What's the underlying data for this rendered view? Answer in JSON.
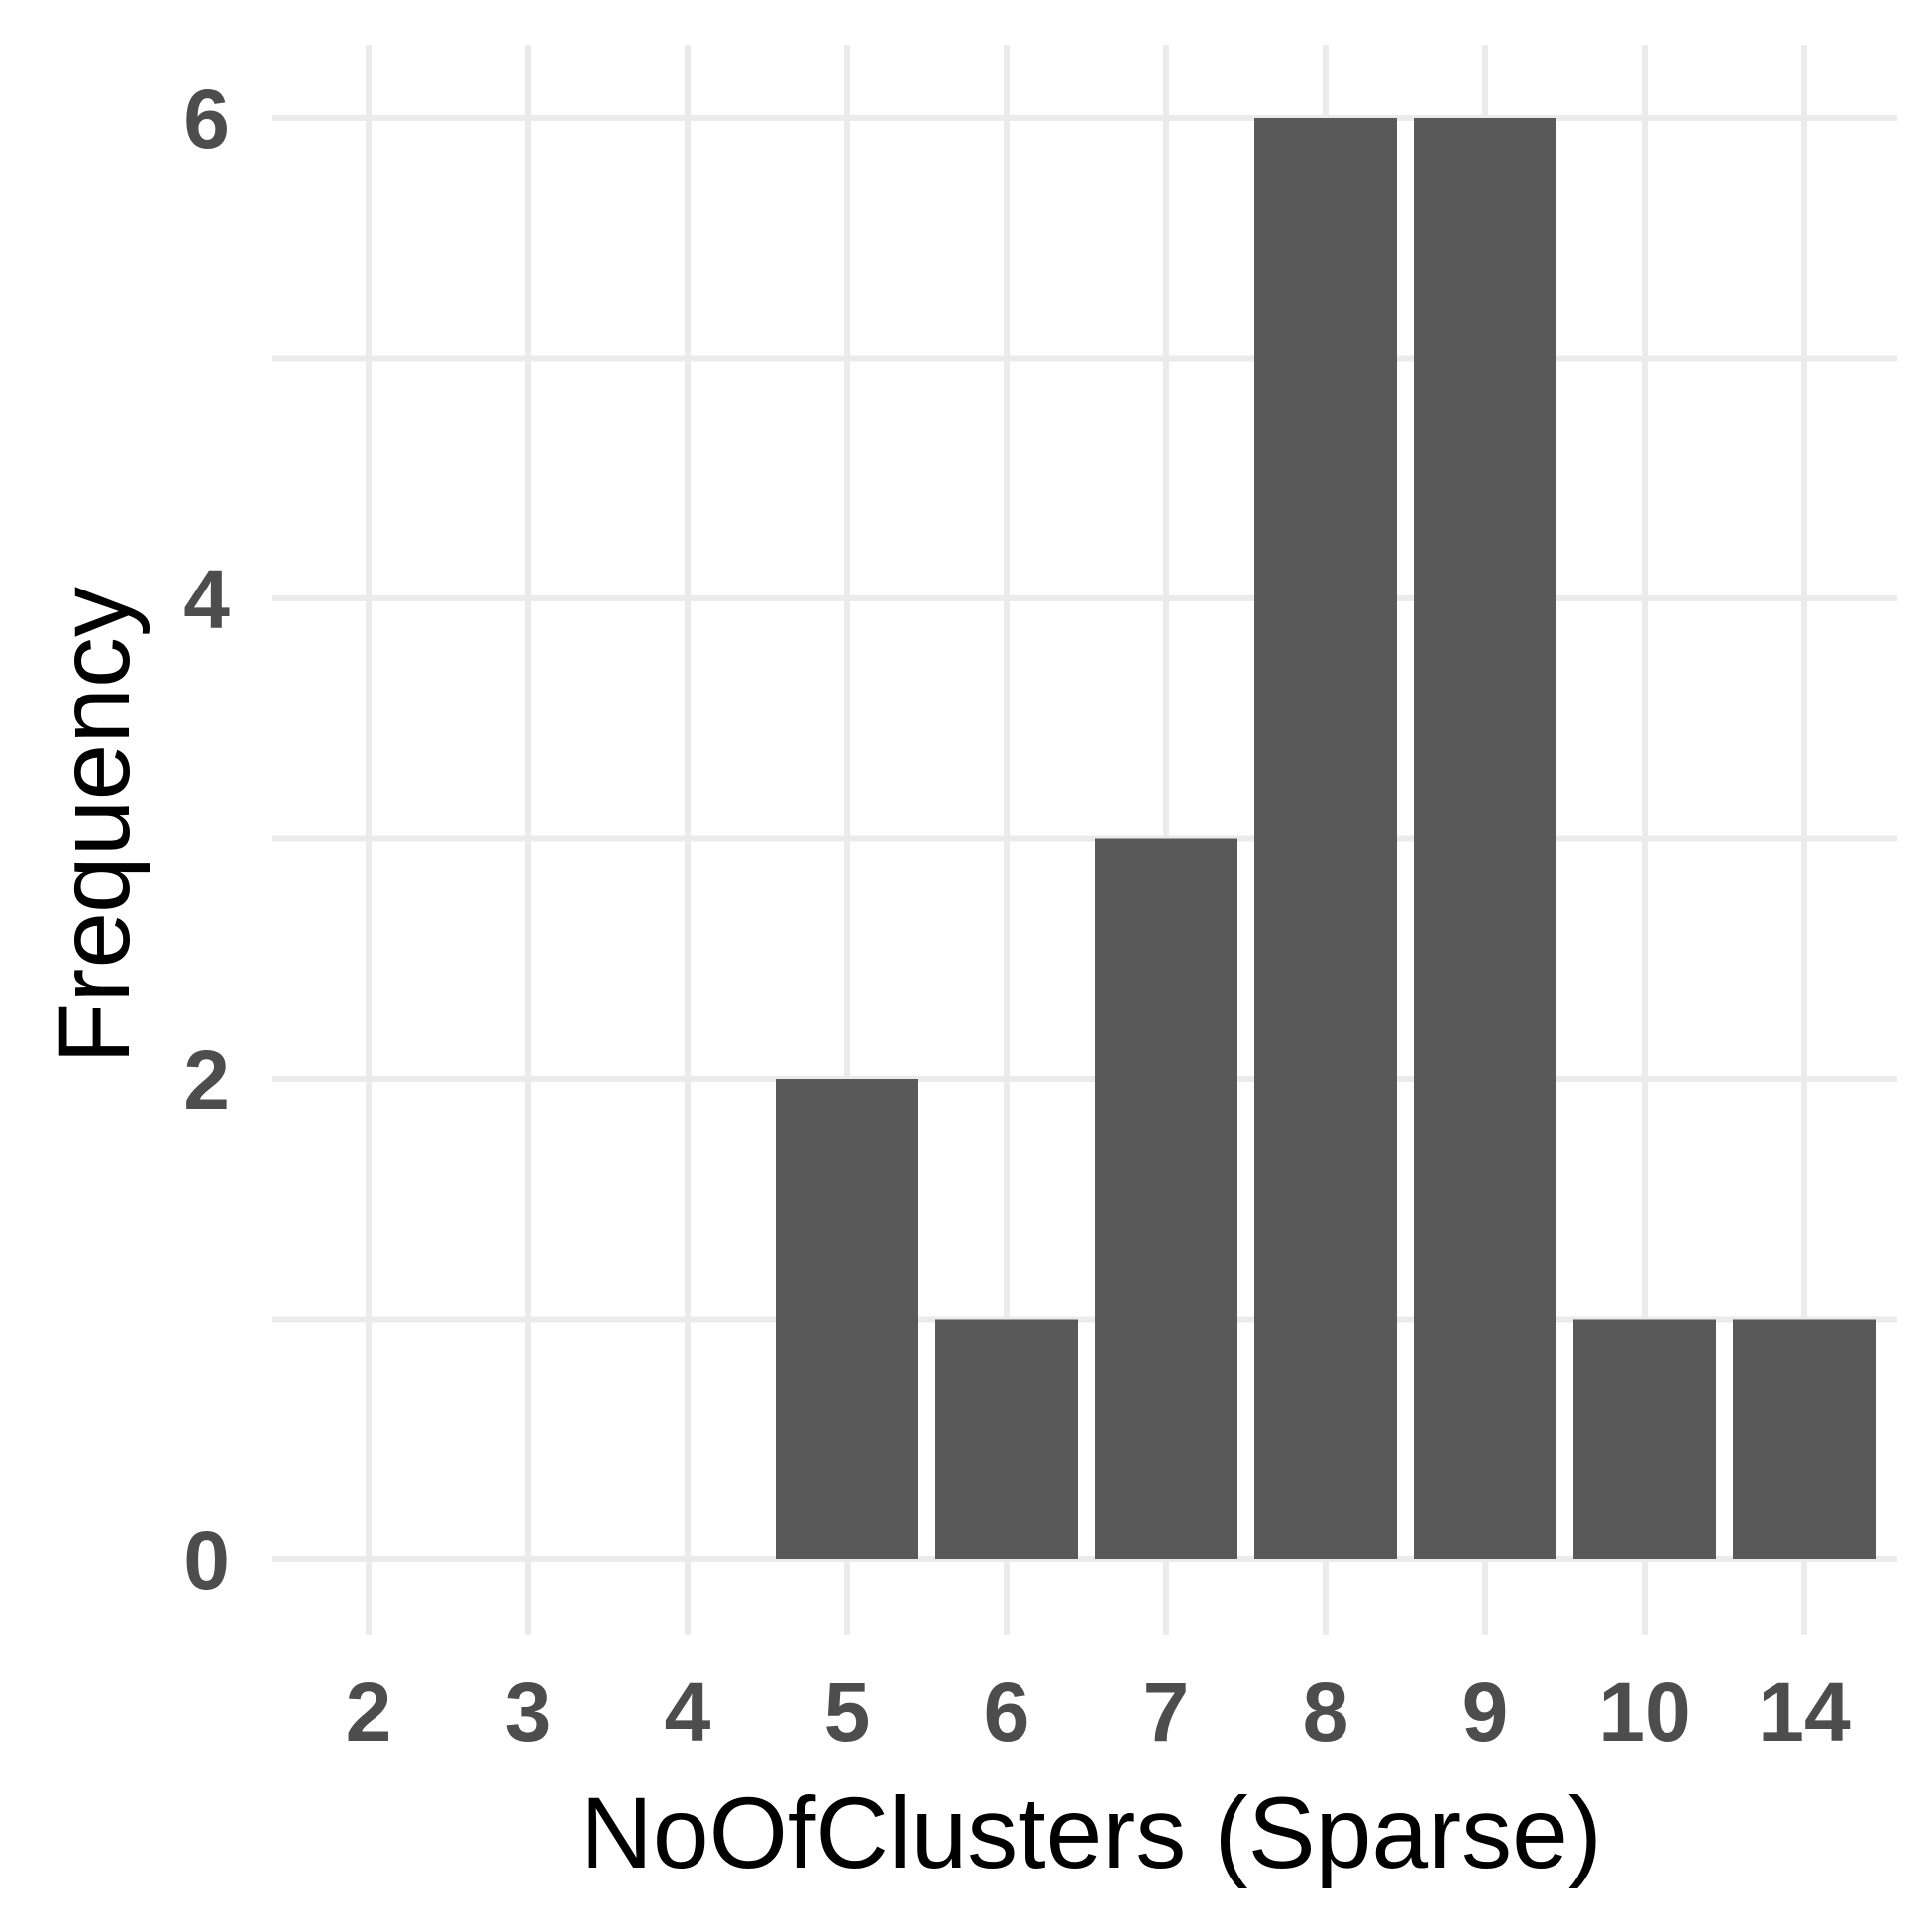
{
  "chart_data": {
    "type": "bar",
    "categories": [
      "2",
      "3",
      "4",
      "5",
      "6",
      "7",
      "8",
      "9",
      "10",
      "14"
    ],
    "values": [
      0,
      0,
      0,
      2,
      1,
      3,
      6,
      6,
      1,
      1
    ],
    "title": "",
    "xlabel": "NoOfClusters (Sparse)",
    "ylabel": "Frequency",
    "ylim": [
      0,
      6
    ],
    "y_ticks": [
      0,
      2,
      4,
      6
    ],
    "y_minor_ticks": [
      1,
      3,
      5
    ],
    "grid": true,
    "legend": "none",
    "colors": {
      "bar": "#595959",
      "grid": "#ebebeb",
      "tick_text": "#4d4d4d",
      "axis_title": "#000000",
      "background": "#ffffff"
    }
  }
}
